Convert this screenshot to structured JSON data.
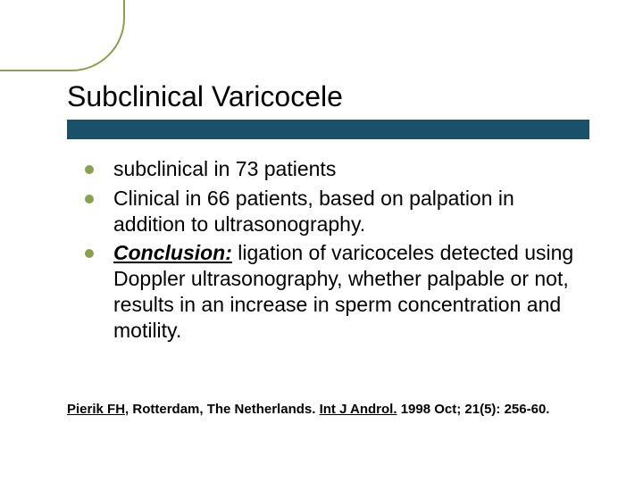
{
  "colors": {
    "accent_green": "#8aa050",
    "title_bar": "#1a5068",
    "text": "#000000",
    "background": "#ffffff"
  },
  "title": "Subclinical Varicocele",
  "bullets": [
    {
      "text": "subclinical in 73 patients"
    },
    {
      "text": "Clinical in 66 patients, based on palpation in addition to ultrasonography."
    },
    {
      "label": "Conclusion:",
      "text": " ligation of varicoceles detected using Doppler ultrasonography, whether palpable or not, results in an increase in sperm concentration and motility."
    }
  ],
  "citation": {
    "author": "Pierik FH,",
    "location": " Rotterdam, The Netherlands. ",
    "journal": "Int J Androl.",
    "rest": " 1998 Oct; 21(5): 256-60."
  },
  "typography": {
    "title_fontsize": 32,
    "body_fontsize": 23,
    "citation_fontsize": 15
  }
}
